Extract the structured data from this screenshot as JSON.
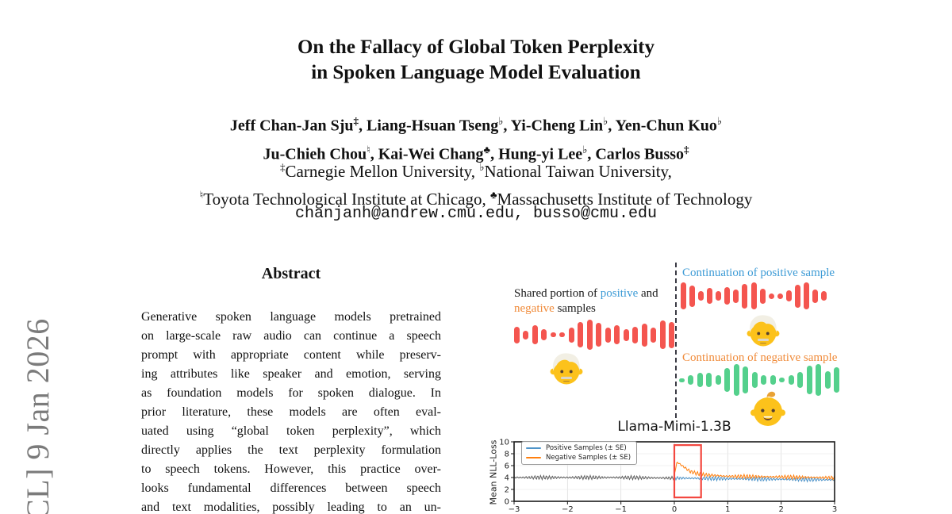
{
  "arxiv_stamp": {
    "text": "CL]  9 Jan 2026",
    "color": "#7b7b7b"
  },
  "header": {
    "title_lines": [
      "On the Fallacy of Global Token Perplexity",
      "in Spoken Language Model Evaluation"
    ],
    "author_lines": [
      [
        {
          "name": "Jeff Chan-Jan Sju",
          "mark": "‡"
        },
        {
          "name": "Liang-Hsuan Tseng",
          "mark": "♭"
        },
        {
          "name": "Yi-Cheng Lin",
          "mark": "♭"
        },
        {
          "name": "Yen-Chun Kuo",
          "mark": "♭"
        }
      ],
      [
        {
          "name": "Ju-Chieh Chou",
          "mark": "♮"
        },
        {
          "name": "Kai-Wei Chang",
          "mark": "♣"
        },
        {
          "name": "Hung-yi Lee",
          "mark": "♭"
        },
        {
          "name": "Carlos Busso",
          "mark": "‡"
        }
      ]
    ],
    "affiliation_lines": [
      [
        {
          "mark": "‡",
          "text": "Carnegie Mellon University, "
        },
        {
          "mark": "♭",
          "text": "National Taiwan University,"
        }
      ],
      [
        {
          "mark": "♮",
          "text": "Toyota Technological Institute at Chicago, "
        },
        {
          "mark": "♣",
          "text": "Massachusetts Institute of Technology"
        }
      ]
    ],
    "emails": "chanjanh@andrew.cmu.edu, busso@cmu.edu"
  },
  "abstract": {
    "heading": "Abstract",
    "lines": [
      "Generative spoken language models pretrained",
      "on large-scale raw audio can continue a speech",
      "prompt with appropriate content while preserv-",
      "ing attributes like speaker and emotion, serving",
      "as foundation models for spoken dialogue. In",
      "prior literature, these models are often eval-",
      "uated using “global token perplexity”, which",
      "directly applies the text perplexity formulation",
      "to speech tokens. However, this practice over-",
      "looks fundamental differences between speech",
      "and text modalities, possibly leading to an un-"
    ]
  },
  "figure": {
    "shared_label": {
      "line1": [
        {
          "t": "Shared portion of "
        },
        {
          "t": "positive",
          "c": "#3d9bd6"
        },
        {
          "t": " and"
        }
      ],
      "line2": [
        {
          "t": "negative",
          "c": "#f08b3a"
        },
        {
          "t": " samples"
        }
      ]
    },
    "positive_label": "Continuation of positive sample",
    "positive_label_color": "#3d9bd6",
    "negative_label": "Continuation of negative sample",
    "negative_label_color": "#f08b3a",
    "emoji": {
      "shared_speaker": "old-man",
      "positive_speaker": "old-man",
      "negative_speaker": "baby"
    },
    "waveforms": {
      "shared": {
        "color": "#f4554f",
        "bars": [
          0.55,
          0.3,
          0.62,
          0.38,
          0.15,
          0.15,
          0.5,
          0.85,
          1.0,
          0.8,
          0.5,
          0.62,
          0.4,
          0.55,
          0.75,
          0.5,
          0.95,
          0.88
        ]
      },
      "positive": {
        "color": "#f4554f",
        "bars": [
          1.0,
          0.78,
          0.35,
          0.6,
          0.35,
          0.65,
          0.5,
          0.9,
          1.0,
          0.55,
          0.2,
          0.2,
          0.42,
          0.85,
          1.0,
          0.5,
          0.35
        ]
      },
      "negative": {
        "color": "#54d08c",
        "bars": [
          0.12,
          0.3,
          0.45,
          0.45,
          0.3,
          0.75,
          1.0,
          0.85,
          0.5,
          0.3,
          0.3,
          0.15,
          0.3,
          0.5,
          0.9,
          1.0,
          0.55,
          0.8
        ]
      }
    }
  },
  "chart_data": {
    "type": "line",
    "title": "Llama-Mimi-1.3B",
    "xlabel": "",
    "ylabel": "Mean NLL-Loss",
    "xlim": [
      -3,
      3
    ],
    "ylim": [
      0,
      10
    ],
    "xtick_values": [
      -3,
      -2,
      -1,
      0,
      1,
      2,
      3
    ],
    "xtick_labels": [
      "−3",
      "−2",
      "−1",
      "0",
      "1",
      "2",
      "3"
    ],
    "ytick_values": [
      0,
      2,
      4,
      6,
      8,
      10
    ],
    "legend_position": "upper-left",
    "grid": true,
    "shared_region_color": "#606060",
    "zigzag_amplitude": 0.35,
    "series": [
      {
        "name": "Positive Samples (± SE)",
        "color": "#4f94c9",
        "approx_points": [
          [
            -3,
            4.0
          ],
          [
            -2,
            4.0
          ],
          [
            -1,
            4.0
          ],
          [
            0,
            3.9
          ],
          [
            0.5,
            3.85
          ],
          [
            1,
            3.8
          ],
          [
            2,
            3.7
          ],
          [
            3,
            3.6
          ]
        ]
      },
      {
        "name": "Negative Samples (± SE)",
        "color": "#ff7f0e",
        "approx_points": [
          [
            -3,
            4.0
          ],
          [
            -2,
            4.0
          ],
          [
            -1,
            4.0
          ],
          [
            0,
            4.5
          ],
          [
            0.05,
            6.6
          ],
          [
            0.3,
            5.0
          ],
          [
            0.5,
            4.5
          ],
          [
            1,
            4.2
          ],
          [
            2,
            4.1
          ],
          [
            3,
            3.95
          ]
        ]
      }
    ],
    "highlight_box": {
      "x0": 0,
      "x1": 0.5,
      "y0": 0.65,
      "y1": 9.45,
      "color": "#f3473f"
    }
  }
}
